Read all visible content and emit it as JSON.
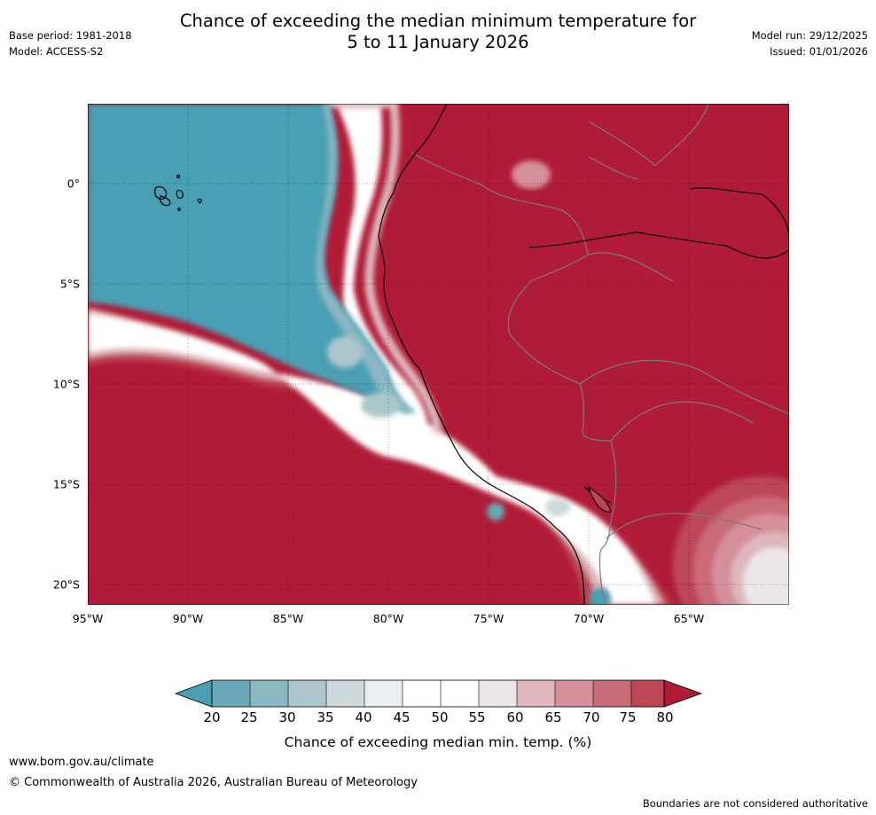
{
  "title": {
    "line1": "Chance of exceeding the median minimum temperature for",
    "line2": "5 to 11 January 2026"
  },
  "meta_left": {
    "base_period": "Base period: 1981-2018",
    "model": "Model: ACCESS-S2"
  },
  "meta_right": {
    "model_run": "Model run: 29/12/2025",
    "issued": "Issued: 01/01/2026"
  },
  "map": {
    "lat_labels": [
      "0°",
      "5°S",
      "10°S",
      "15°S",
      "20°S"
    ],
    "lon_labels": [
      "95°W",
      "90°W",
      "85°W",
      "80°W",
      "75°W",
      "70°W",
      "65°W"
    ],
    "lon_range_deg": [
      -95,
      -60
    ],
    "lat_range_deg": [
      4,
      -21
    ]
  },
  "colorbar": {
    "label": "Chance of exceeding median min. temp. (%)",
    "ticks": [
      "20",
      "25",
      "30",
      "35",
      "40",
      "45",
      "50",
      "55",
      "60",
      "65",
      "70",
      "75",
      "80"
    ],
    "colors": {
      "below_20": "#4a9fb3",
      "c20_25": "#6aa8b7",
      "c25_30": "#8bb7c3",
      "c30_35": "#adc6cd",
      "c35_40": "#cdd9dc",
      "c40_45": "#e9eef0",
      "c45_50": "#ffffff",
      "c50_55": "#ffffff",
      "c55_60": "#ece6e8",
      "c60_65": "#dfb7bd",
      "c65_70": "#d59099",
      "c70_75": "#c96a77",
      "c75_80": "#bd4655",
      "above_80": "#b01c37"
    }
  },
  "footer": {
    "url": "www.bom.gov.au/climate",
    "copyright": "© Commonwealth of Australia 2026, Australian Bureau of Meteorology",
    "disclaimer": "Boundaries are not considered authoritative"
  }
}
